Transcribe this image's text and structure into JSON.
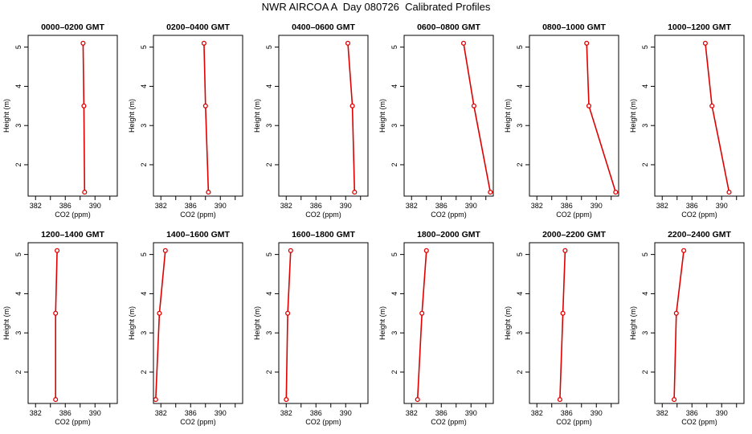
{
  "title": "NWR AIRCOA A  Day 080726  Calibrated Profiles",
  "colors": {
    "series": "#e00000",
    "axis": "#000000"
  },
  "chart_data": [
    {
      "type": "line",
      "title": "0000–0200 GMT",
      "xlabel": "CO2 (ppm)",
      "ylabel": "Height (m)",
      "xlim": [
        381,
        393
      ],
      "ylim": [
        1.2,
        5.3
      ],
      "xticks": [
        382,
        386,
        390
      ],
      "yticks": [
        2,
        3,
        4,
        5
      ],
      "series": [
        {
          "x": [
            388.6,
            388.5,
            388.4
          ],
          "y": [
            1.3,
            3.5,
            5.1
          ]
        }
      ]
    },
    {
      "type": "line",
      "title": "0200–0400 GMT",
      "xlabel": "CO2 (ppm)",
      "ylabel": "Height (m)",
      "xlim": [
        381,
        393
      ],
      "ylim": [
        1.2,
        5.3
      ],
      "xticks": [
        382,
        386,
        390
      ],
      "yticks": [
        2,
        3,
        4,
        5
      ],
      "series": [
        {
          "x": [
            388.4,
            388.0,
            387.8
          ],
          "y": [
            1.3,
            3.5,
            5.1
          ]
        }
      ]
    },
    {
      "type": "line",
      "title": "0400–0600 GMT",
      "xlabel": "CO2 (ppm)",
      "ylabel": "Height (m)",
      "xlim": [
        381,
        393
      ],
      "ylim": [
        1.2,
        5.3
      ],
      "xticks": [
        382,
        386,
        390
      ],
      "yticks": [
        2,
        3,
        4,
        5
      ],
      "series": [
        {
          "x": [
            391.2,
            390.9,
            390.3
          ],
          "y": [
            1.3,
            3.5,
            5.1
          ]
        }
      ]
    },
    {
      "type": "line",
      "title": "0600–0800 GMT",
      "xlabel": "CO2 (ppm)",
      "ylabel": "Height (m)",
      "xlim": [
        381,
        393
      ],
      "ylim": [
        1.2,
        5.3
      ],
      "xticks": [
        382,
        386,
        390
      ],
      "yticks": [
        2,
        3,
        4,
        5
      ],
      "series": [
        {
          "x": [
            392.6,
            390.4,
            389.0
          ],
          "y": [
            1.3,
            3.5,
            5.1
          ]
        }
      ]
    },
    {
      "type": "line",
      "title": "0800–1000 GMT",
      "xlabel": "CO2 (ppm)",
      "ylabel": "Height (m)",
      "xlim": [
        381,
        393
      ],
      "ylim": [
        1.2,
        5.3
      ],
      "xticks": [
        382,
        386,
        390
      ],
      "yticks": [
        2,
        3,
        4,
        5
      ],
      "series": [
        {
          "x": [
            392.6,
            389.0,
            388.7
          ],
          "y": [
            1.3,
            3.5,
            5.1
          ]
        }
      ]
    },
    {
      "type": "line",
      "title": "1000–1200 GMT",
      "xlabel": "CO2 (ppm)",
      "ylabel": "Height (m)",
      "xlim": [
        381,
        393
      ],
      "ylim": [
        1.2,
        5.3
      ],
      "xticks": [
        382,
        386,
        390
      ],
      "yticks": [
        2,
        3,
        4,
        5
      ],
      "series": [
        {
          "x": [
            391.0,
            388.7,
            387.8
          ],
          "y": [
            1.3,
            3.5,
            5.1
          ]
        }
      ]
    },
    {
      "type": "line",
      "title": "1200–1400 GMT",
      "xlabel": "CO2 (ppm)",
      "ylabel": "Height (m)",
      "xlim": [
        381,
        393
      ],
      "ylim": [
        1.2,
        5.3
      ],
      "xticks": [
        382,
        386,
        390
      ],
      "yticks": [
        2,
        3,
        4,
        5
      ],
      "series": [
        {
          "x": [
            384.7,
            384.7,
            384.9
          ],
          "y": [
            1.3,
            3.5,
            5.1
          ]
        }
      ]
    },
    {
      "type": "line",
      "title": "1400–1600 GMT",
      "xlabel": "CO2 (ppm)",
      "ylabel": "Height (m)",
      "xlim": [
        381,
        393
      ],
      "ylim": [
        1.2,
        5.3
      ],
      "xticks": [
        382,
        386,
        390
      ],
      "yticks": [
        2,
        3,
        4,
        5
      ],
      "series": [
        {
          "x": [
            381.3,
            381.8,
            382.6
          ],
          "y": [
            1.3,
            3.5,
            5.1
          ]
        }
      ]
    },
    {
      "type": "line",
      "title": "1600–1800 GMT",
      "xlabel": "CO2 (ppm)",
      "ylabel": "Height (m)",
      "xlim": [
        381,
        393
      ],
      "ylim": [
        1.2,
        5.3
      ],
      "xticks": [
        382,
        386,
        390
      ],
      "yticks": [
        2,
        3,
        4,
        5
      ],
      "series": [
        {
          "x": [
            382.0,
            382.2,
            382.6
          ],
          "y": [
            1.3,
            3.5,
            5.1
          ]
        }
      ]
    },
    {
      "type": "line",
      "title": "1800–2000 GMT",
      "xlabel": "CO2 (ppm)",
      "ylabel": "Height (m)",
      "xlim": [
        381,
        393
      ],
      "ylim": [
        1.2,
        5.3
      ],
      "xticks": [
        382,
        386,
        390
      ],
      "yticks": [
        2,
        3,
        4,
        5
      ],
      "series": [
        {
          "x": [
            382.8,
            383.4,
            384.0
          ],
          "y": [
            1.3,
            3.5,
            5.1
          ]
        }
      ]
    },
    {
      "type": "line",
      "title": "2000–2200 GMT",
      "xlabel": "CO2 (ppm)",
      "ylabel": "Height (m)",
      "xlim": [
        381,
        393
      ],
      "ylim": [
        1.2,
        5.3
      ],
      "xticks": [
        382,
        386,
        390
      ],
      "yticks": [
        2,
        3,
        4,
        5
      ],
      "series": [
        {
          "x": [
            385.1,
            385.5,
            385.8
          ],
          "y": [
            1.3,
            3.5,
            5.1
          ]
        }
      ]
    },
    {
      "type": "line",
      "title": "2200–2400 GMT",
      "xlabel": "CO2 (ppm)",
      "ylabel": "Height (m)",
      "xlim": [
        381,
        393
      ],
      "ylim": [
        1.2,
        5.3
      ],
      "xticks": [
        382,
        386,
        390
      ],
      "yticks": [
        2,
        3,
        4,
        5
      ],
      "series": [
        {
          "x": [
            383.6,
            383.9,
            384.9
          ],
          "y": [
            1.3,
            3.5,
            5.1
          ]
        }
      ]
    }
  ]
}
